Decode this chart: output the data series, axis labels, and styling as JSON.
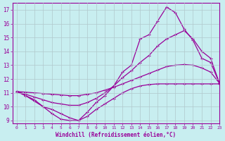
{
  "xlabel": "Windchill (Refroidissement éolien,°C)",
  "bg_color": "#c8eef0",
  "line_color": "#990099",
  "grid_color": "#b0c8cc",
  "xlim": [
    -0.5,
    23
  ],
  "ylim": [
    8.8,
    17.5
  ],
  "xticks": [
    0,
    1,
    2,
    3,
    4,
    5,
    6,
    7,
    8,
    9,
    10,
    11,
    12,
    13,
    14,
    15,
    16,
    17,
    18,
    19,
    20,
    21,
    22,
    23
  ],
  "yticks": [
    9,
    10,
    11,
    12,
    13,
    14,
    15,
    16,
    17
  ],
  "line1_x": [
    0,
    1,
    2,
    3,
    4,
    5,
    6,
    7,
    8,
    9,
    10,
    11,
    12,
    13,
    14,
    15,
    16,
    17,
    18,
    19,
    20,
    21,
    22,
    23
  ],
  "line1_y": [
    11.1,
    10.8,
    10.5,
    10.0,
    9.5,
    9.1,
    9.0,
    9.0,
    9.6,
    10.3,
    10.8,
    11.5,
    12.5,
    13.0,
    14.9,
    15.2,
    16.2,
    17.2,
    16.8,
    15.6,
    14.8,
    13.5,
    13.2,
    11.7
  ],
  "line2_x": [
    0,
    1,
    2,
    3,
    4,
    5,
    6,
    7,
    8,
    9,
    10,
    11,
    12,
    13,
    14,
    15,
    16,
    17,
    18,
    19,
    20,
    21,
    22,
    23
  ],
  "line2_y": [
    11.1,
    10.9,
    10.7,
    10.5,
    10.3,
    10.2,
    10.1,
    10.1,
    10.3,
    10.6,
    11.0,
    11.5,
    12.1,
    12.6,
    13.2,
    13.7,
    14.4,
    14.9,
    15.2,
    15.5,
    14.9,
    14.0,
    13.5,
    11.7
  ],
  "line3_x": [
    0,
    1,
    2,
    3,
    4,
    5,
    6,
    7,
    8,
    9,
    10,
    11,
    12,
    13,
    14,
    15,
    16,
    17,
    18,
    19,
    20,
    21,
    22,
    23
  ],
  "line3_y": [
    11.1,
    11.05,
    11.0,
    10.95,
    10.9,
    10.85,
    10.8,
    10.8,
    10.9,
    11.0,
    11.2,
    11.4,
    11.65,
    11.9,
    12.15,
    12.4,
    12.65,
    12.9,
    13.0,
    13.05,
    13.0,
    12.8,
    12.5,
    11.7
  ],
  "line4_x": [
    0,
    1,
    2,
    3,
    4,
    5,
    6,
    7,
    8,
    9,
    10,
    11,
    12,
    13,
    14,
    15,
    16,
    17,
    18,
    19,
    20,
    21,
    22,
    23
  ],
  "line4_y": [
    11.1,
    10.8,
    10.4,
    10.0,
    9.8,
    9.5,
    9.2,
    9.0,
    9.3,
    9.8,
    10.2,
    10.6,
    11.0,
    11.3,
    11.5,
    11.6,
    11.65,
    11.65,
    11.65,
    11.65,
    11.65,
    11.65,
    11.65,
    11.65
  ],
  "markersize": 2.5,
  "linewidth": 0.9
}
